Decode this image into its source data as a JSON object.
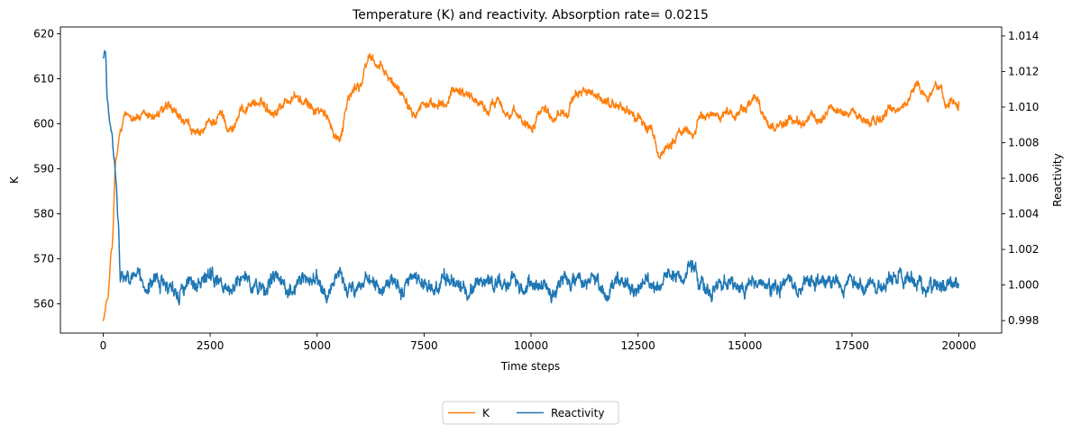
{
  "chart_data": {
    "type": "line",
    "title": "Temperature (K) and reactivity. Absorption rate= 0.0215",
    "xlabel": "Time steps",
    "ylabel_left": "K",
    "ylabel_right": "Reactivity",
    "xlim": [
      -1000,
      21000
    ],
    "ylim_left": [
      553.5,
      621.5
    ],
    "ylim_right": [
      0.9973,
      1.0145
    ],
    "xticks": [
      0,
      2500,
      5000,
      7500,
      10000,
      12500,
      15000,
      17500,
      20000
    ],
    "xtick_labels": [
      "0",
      "2500",
      "5000",
      "7500",
      "10000",
      "12500",
      "15000",
      "17500",
      "20000"
    ],
    "yticks_left": [
      560,
      570,
      580,
      590,
      600,
      610,
      620
    ],
    "ytick_labels_left": [
      "560",
      "570",
      "580",
      "590",
      "600",
      "610",
      "620"
    ],
    "yticks_right": [
      0.998,
      1.0,
      1.002,
      1.004,
      1.006,
      1.008,
      1.01,
      1.012,
      1.014
    ],
    "ytick_labels_right": [
      "0.998",
      "1.000",
      "1.002",
      "1.004",
      "1.006",
      "1.008",
      "1.010",
      "1.012",
      "1.014"
    ],
    "grid": false,
    "legend_placement": "bottom-center",
    "series": [
      {
        "name": "K",
        "axis": "left",
        "color": "#ff7f0e",
        "x": [
          0,
          100,
          200,
          300,
          400,
          500,
          750,
          1000,
          1250,
          1500,
          1750,
          2000,
          2250,
          2500,
          2750,
          3000,
          3250,
          3500,
          3750,
          4000,
          4250,
          4500,
          4750,
          5000,
          5250,
          5500,
          5750,
          6000,
          6250,
          6500,
          6750,
          7000,
          7250,
          7500,
          7750,
          8000,
          8250,
          8500,
          8750,
          9000,
          9250,
          9500,
          9750,
          10000,
          10250,
          10500,
          10750,
          11000,
          11250,
          11500,
          11750,
          12000,
          12250,
          12500,
          12750,
          13000,
          13250,
          13500,
          13750,
          14000,
          14250,
          14500,
          14750,
          15000,
          15250,
          15500,
          15750,
          16000,
          16250,
          16500,
          16750,
          17000,
          17250,
          17500,
          17750,
          18000,
          18250,
          18500,
          18750,
          19000,
          19250,
          19500,
          19750,
          20000
        ],
        "values": [
          556.5,
          561,
          572,
          592,
          598,
          601,
          602,
          601,
          602,
          603,
          601,
          599,
          597,
          600,
          602,
          599,
          603,
          605,
          604,
          603,
          605,
          606,
          604,
          603,
          601,
          597,
          606,
          609,
          615,
          612,
          609,
          607,
          604,
          605,
          603,
          604,
          608,
          607,
          605,
          603,
          606,
          602,
          601,
          600,
          604,
          602,
          603,
          605,
          608,
          605,
          605,
          604,
          603,
          601,
          599,
          593,
          596,
          598,
          598,
          601,
          602,
          603,
          602,
          604,
          605,
          601,
          599,
          601,
          600,
          601,
          601,
          604,
          602,
          603,
          601,
          600,
          602,
          603,
          604,
          609,
          606,
          608,
          605,
          605
        ]
      },
      {
        "name": "Reactivity",
        "axis": "right",
        "color": "#1f77b4",
        "x": [
          0,
          50,
          100,
          150,
          200,
          250,
          300,
          350,
          400,
          500,
          750,
          1000,
          1250,
          1500,
          1750,
          2000,
          2250,
          2500,
          2750,
          3000,
          3250,
          3500,
          3750,
          4000,
          4250,
          4500,
          4750,
          5000,
          5250,
          5500,
          5750,
          6000,
          6250,
          6500,
          6750,
          7000,
          7250,
          7500,
          7750,
          8000,
          8250,
          8500,
          8750,
          9000,
          9250,
          9500,
          9750,
          10000,
          10250,
          10500,
          10750,
          11000,
          11250,
          11500,
          11750,
          12000,
          12250,
          12500,
          12750,
          13000,
          13250,
          13500,
          13750,
          14000,
          14250,
          14500,
          14750,
          15000,
          15250,
          15500,
          15750,
          16000,
          16250,
          16500,
          16750,
          17000,
          17250,
          17500,
          17750,
          18000,
          18250,
          18500,
          18750,
          19000,
          19250,
          19500,
          19750,
          20000
        ],
        "values": [
          1.0128,
          1.0132,
          1.0102,
          1.0092,
          1.0085,
          1.0072,
          1.0058,
          1.0035,
          1.0005,
          1.0002,
          1.0006,
          0.9995,
          1.0003,
          1.0001,
          0.9996,
          1.0002,
          0.9999,
          1.0004,
          1.0,
          0.9997,
          1.0006,
          1.0001,
          0.9998,
          1.0004,
          1.0,
          0.9999,
          1.0005,
          1.0002,
          0.9996,
          1.0003,
          1.0,
          0.9998,
          1.0004,
          0.9999,
          1.0002,
          0.9997,
          1.0003,
          1.0001,
          0.9998,
          1.0004,
          1.0,
          0.9997,
          1.0002,
          1.0004,
          0.9999,
          1.0001,
          0.9998,
          1.0003,
          1.0,
          0.9996,
          1.0004,
          1.0001,
          0.9999,
          1.0003,
          0.9997,
          1.0002,
          1.0,
          0.9998,
          1.0003,
          0.9998,
          1.0004,
          1.0001,
          1.0007,
          1.0,
          0.9998,
          1.0003,
          1.0001,
          0.9997,
          1.0004,
          1.0,
          0.9999,
          1.0002,
          0.9997,
          1.0003,
          1.0,
          1.0002,
          0.9998,
          1.0003,
          0.9999,
          1.0001,
          0.9998,
          1.0004,
          1.0003,
          1.0,
          0.9997,
          1.0002,
          1.0001,
          1.0
        ]
      }
    ]
  }
}
